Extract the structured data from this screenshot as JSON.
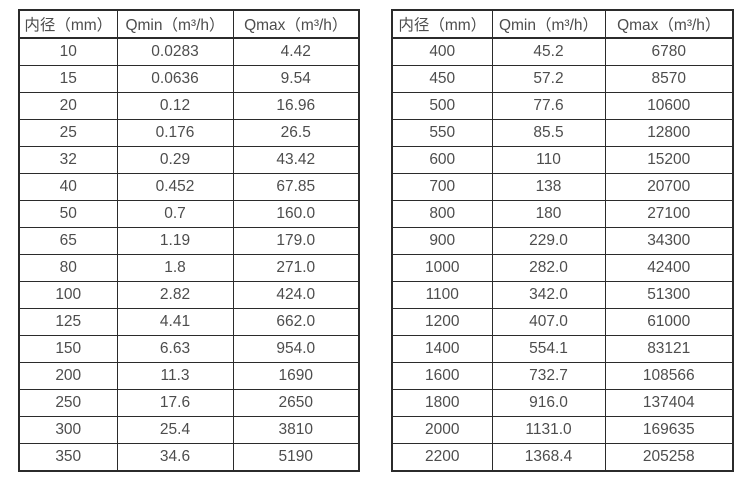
{
  "colors": {
    "border": "#2b2b2b",
    "text": "#4d4d4d",
    "background": "#ffffff"
  },
  "chart_data": [
    {
      "type": "table",
      "title": "",
      "headers": [
        "内径（mm）",
        "Qmin（m³/h）",
        "Qmax（m³/h）"
      ],
      "rows": [
        [
          "10",
          "0.0283",
          "4.42"
        ],
        [
          "15",
          "0.0636",
          "9.54"
        ],
        [
          "20",
          "0.12",
          "16.96"
        ],
        [
          "25",
          "0.176",
          "26.5"
        ],
        [
          "32",
          "0.29",
          "43.42"
        ],
        [
          "40",
          "0.452",
          "67.85"
        ],
        [
          "50",
          "0.7",
          "160.0"
        ],
        [
          "65",
          "1.19",
          "179.0"
        ],
        [
          "80",
          "1.8",
          "271.0"
        ],
        [
          "100",
          "2.82",
          "424.0"
        ],
        [
          "125",
          "4.41",
          "662.0"
        ],
        [
          "150",
          "6.63",
          "954.0"
        ],
        [
          "200",
          "11.3",
          "1690"
        ],
        [
          "250",
          "17.6",
          "2650"
        ],
        [
          "300",
          "25.4",
          "3810"
        ],
        [
          "350",
          "34.6",
          "5190"
        ]
      ]
    },
    {
      "type": "table",
      "title": "",
      "headers": [
        "内径（mm）",
        "Qmin（m³/h）",
        "Qmax（m³/h）"
      ],
      "rows": [
        [
          "400",
          "45.2",
          "6780"
        ],
        [
          "450",
          "57.2",
          "8570"
        ],
        [
          "500",
          "77.6",
          "10600"
        ],
        [
          "550",
          "85.5",
          "12800"
        ],
        [
          "600",
          "110",
          "15200"
        ],
        [
          "700",
          "138",
          "20700"
        ],
        [
          "800",
          "180",
          "27100"
        ],
        [
          "900",
          "229.0",
          "34300"
        ],
        [
          "1000",
          "282.0",
          "42400"
        ],
        [
          "1100",
          "342.0",
          "51300"
        ],
        [
          "1200",
          "407.0",
          "61000"
        ],
        [
          "1400",
          "554.1",
          "83121"
        ],
        [
          "1600",
          "732.7",
          "108566"
        ],
        [
          "1800",
          "916.0",
          "137404"
        ],
        [
          "2000",
          "1131.0",
          "169635"
        ],
        [
          "2200",
          "1368.4",
          "205258"
        ]
      ]
    }
  ]
}
